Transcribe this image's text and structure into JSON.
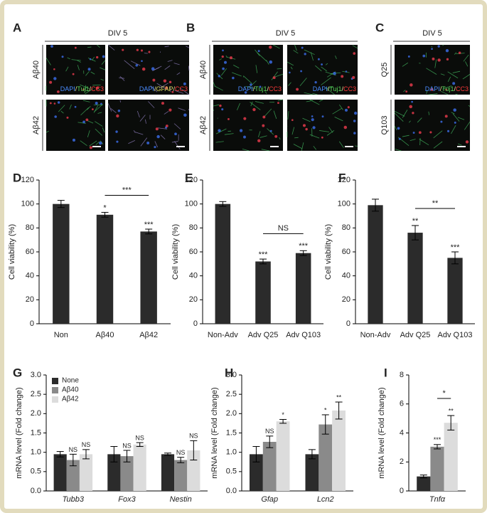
{
  "image_panels": [
    {
      "label": "A",
      "header": "DIV 5",
      "rows": [
        "Aβ40",
        "Aβ42"
      ],
      "stains": [
        [
          "DAPI",
          "Tuj1",
          "CC3"
        ],
        [
          "DAPI",
          "GFAP",
          "CC3"
        ]
      ]
    },
    {
      "label": "B",
      "header": "DIV 5",
      "rows": [
        "Aβ40",
        "Aβ42"
      ],
      "stains": [
        [
          "DAPI",
          "Tuj1",
          "CC3"
        ]
      ]
    },
    {
      "label": "C",
      "header": "DIV 5",
      "rows": [
        "Q25",
        "Q103"
      ],
      "stains": [
        [
          "DAPI",
          "Tuj1",
          "CC3"
        ]
      ]
    }
  ],
  "stain_separator": "/",
  "stain_colors": {
    "DAPI": "#4a8cff",
    "Tuj1": "#5ad85a",
    "GFAP": "#d8d860",
    "CC3": "#ff3a3a"
  },
  "chart_data": [
    {
      "type": "bar",
      "panel": "D",
      "ylabel": "Cell viability (%)",
      "ylim": [
        0,
        120
      ],
      "yticks": [
        0,
        20,
        40,
        60,
        80,
        100,
        120
      ],
      "categories": [
        "Non",
        "Aβ40",
        "Aβ42"
      ],
      "values": [
        100,
        91,
        77
      ],
      "errors": [
        3,
        2,
        2
      ],
      "color": "#2b2b2b",
      "significance": [
        null,
        "*",
        "***"
      ],
      "brackets": [
        {
          "from": "Aβ40",
          "to": "Aβ42",
          "label": "***"
        }
      ]
    },
    {
      "type": "bar",
      "panel": "E",
      "ylabel": "Cell viability (%)",
      "ylim": [
        0,
        120
      ],
      "yticks": [
        0,
        20,
        40,
        60,
        80,
        100,
        120
      ],
      "categories": [
        "Non-Adv",
        "Adv Q25",
        "Adv Q103"
      ],
      "values": [
        100,
        52,
        59
      ],
      "errors": [
        2,
        2,
        2
      ],
      "color": "#2b2b2b",
      "significance": [
        null,
        "***",
        "***"
      ],
      "brackets": [
        {
          "from": "Adv Q25",
          "to": "Adv Q103",
          "label": "NS"
        }
      ]
    },
    {
      "type": "bar",
      "panel": "F",
      "ylabel": "Cell viability (%)",
      "ylim": [
        0,
        120
      ],
      "yticks": [
        0,
        20,
        40,
        60,
        80,
        100,
        120
      ],
      "categories": [
        "Non-Adv",
        "Adv Q25",
        "Adv Q103"
      ],
      "values": [
        99,
        76,
        55
      ],
      "errors": [
        5,
        6,
        5
      ],
      "color": "#2b2b2b",
      "significance": [
        null,
        "**",
        "***"
      ],
      "brackets": [
        {
          "from": "Adv Q25",
          "to": "Adv Q103",
          "label": "**"
        }
      ]
    },
    {
      "type": "grouped_bar",
      "panel": "G",
      "ylabel": "mRNA level (Fold change)",
      "ylim": [
        0,
        3
      ],
      "yticks": [
        {
          "value": 0,
          "label": "0.0"
        },
        0.5,
        {
          "value": 1,
          "label": "1.0"
        },
        1.5,
        {
          "value": 2,
          "label": "2.0"
        },
        2.5,
        {
          "value": 3,
          "label": "3.0"
        }
      ],
      "categories": [
        "Tubb3",
        "Fox3",
        "Nestin"
      ],
      "italic_categories": true,
      "legend": true,
      "series": [
        {
          "name": "None",
          "color": "#2b2b2b",
          "values": [
            0.95,
            0.95,
            0.95
          ],
          "errors": [
            0.07,
            0.2,
            0.03
          ],
          "significance": [
            null,
            null,
            null
          ]
        },
        {
          "name": "Aβ40",
          "color": "#8a8a8a",
          "values": [
            0.8,
            0.9,
            0.8
          ],
          "errors": [
            0.15,
            0.15,
            0.07
          ],
          "significance": [
            "NS",
            "NS",
            "NS"
          ]
        },
        {
          "name": "Aβ42",
          "color": "#dcdcdc",
          "values": [
            0.95,
            1.2,
            1.05
          ],
          "errors": [
            0.12,
            0.05,
            0.25
          ],
          "significance": [
            "NS",
            "NS",
            "NS"
          ]
        }
      ],
      "brackets": []
    },
    {
      "type": "grouped_bar",
      "panel": "H",
      "ylabel": "mRNA level (Fold change)",
      "ylim": [
        0,
        3
      ],
      "yticks": [
        {
          "value": 0,
          "label": "0.0"
        },
        0.5,
        {
          "value": 1,
          "label": "1.0"
        },
        1.5,
        {
          "value": 2,
          "label": "2.0"
        },
        2.5,
        {
          "value": 3,
          "label": "3.0"
        }
      ],
      "categories": [
        "Gfap",
        "Lcn2"
      ],
      "italic_categories": true,
      "legend": false,
      "series": [
        {
          "name": "None",
          "color": "#2b2b2b",
          "values": [
            0.95,
            0.95
          ],
          "errors": [
            0.2,
            0.12
          ],
          "significance": [
            null,
            null
          ]
        },
        {
          "name": "Aβ40",
          "color": "#8a8a8a",
          "values": [
            1.27,
            1.72
          ],
          "errors": [
            0.15,
            0.25
          ],
          "significance": [
            "NS",
            "*"
          ]
        },
        {
          "name": "Aβ42",
          "color": "#dcdcdc",
          "values": [
            1.8,
            2.08
          ],
          "errors": [
            0.05,
            0.22
          ],
          "significance": [
            "*",
            "**"
          ]
        }
      ],
      "brackets": []
    },
    {
      "type": "grouped_bar",
      "panel": "I",
      "ylabel": "mRNA level (Fold change)",
      "ylim": [
        0,
        8
      ],
      "yticks": [
        0,
        2,
        4,
        6,
        8
      ],
      "categories": [
        "Tnfα"
      ],
      "italic_categories": true,
      "legend": false,
      "series": [
        {
          "name": "None",
          "color": "#2b2b2b",
          "values": [
            1.0
          ],
          "errors": [
            0.1
          ],
          "significance": [
            null
          ]
        },
        {
          "name": "Aβ40",
          "color": "#8a8a8a",
          "values": [
            3.05
          ],
          "errors": [
            0.15
          ],
          "significance": [
            "***"
          ]
        },
        {
          "name": "Aβ42",
          "color": "#dcdcdc",
          "values": [
            4.7
          ],
          "errors": [
            0.5
          ],
          "significance": [
            "**"
          ]
        }
      ],
      "brackets": [
        {
          "from": "Aβ40",
          "to": "Aβ42",
          "label": "*"
        }
      ]
    }
  ]
}
